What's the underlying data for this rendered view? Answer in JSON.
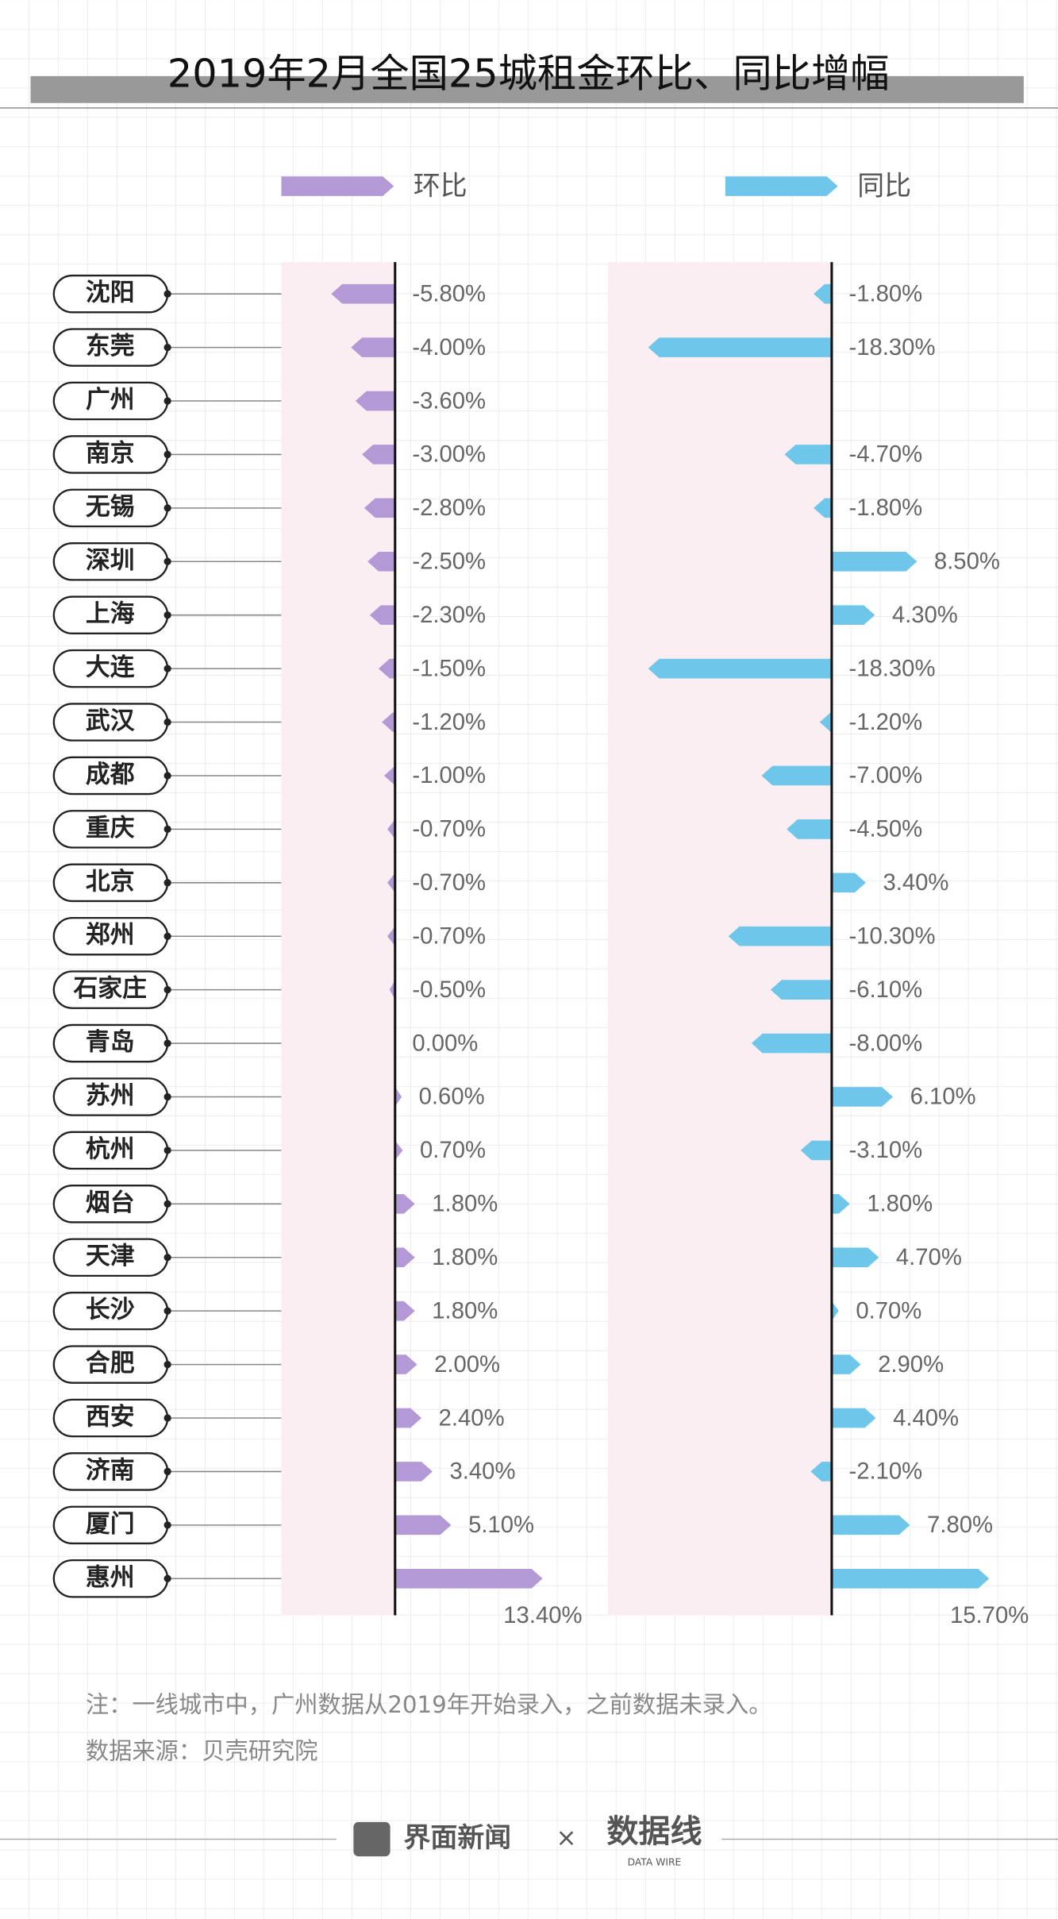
{
  "chart_data": {
    "type": "bar",
    "orientation": "horizontal",
    "title": "2019年2月全国25城租金环比、同比增幅",
    "categories": [
      "沈阳",
      "东莞",
      "广州",
      "南京",
      "无锡",
      "深圳",
      "上海",
      "大连",
      "武汉",
      "成都",
      "重庆",
      "北京",
      "郑州",
      "石家庄",
      "青岛",
      "苏州",
      "杭州",
      "烟台",
      "天津",
      "长沙",
      "合肥",
      "西安",
      "济南",
      "厦门",
      "惠州"
    ],
    "series": [
      {
        "name": "环比",
        "color": "#b39ad6",
        "values": [
          -5.8,
          -4.0,
          -3.6,
          -3.0,
          -2.8,
          -2.5,
          -2.3,
          -1.5,
          -1.2,
          -1.0,
          -0.7,
          -0.7,
          -0.7,
          -0.5,
          0.0,
          0.6,
          0.7,
          1.8,
          1.8,
          1.8,
          2.0,
          2.4,
          3.4,
          5.1,
          13.4
        ],
        "value_labels": [
          "-5.80%",
          "-4.00%",
          "-3.60%",
          "-3.00%",
          "-2.80%",
          "-2.50%",
          "-2.30%",
          "-1.50%",
          "-1.20%",
          "-1.00%",
          "-0.70%",
          "-0.70%",
          "-0.70%",
          "-0.50%",
          "0.00%",
          "0.60%",
          "0.70%",
          "1.80%",
          "1.80%",
          "1.80%",
          "2.00%",
          "2.40%",
          "3.40%",
          "5.10%",
          "13.40%"
        ]
      },
      {
        "name": "同比",
        "color": "#6ec6ea",
        "values": [
          -1.8,
          -18.3,
          null,
          -4.7,
          -1.8,
          8.5,
          4.3,
          -18.3,
          -1.2,
          -7.0,
          -4.5,
          3.4,
          -10.3,
          -6.1,
          -8.0,
          6.1,
          -3.1,
          1.8,
          4.7,
          0.7,
          2.9,
          4.4,
          -2.1,
          7.8,
          15.7
        ],
        "value_labels": [
          "-1.80%",
          "-18.30%",
          null,
          "-4.70%",
          "-1.80%",
          "8.50%",
          "4.30%",
          "-18.30%",
          "-1.20%",
          "-7.00%",
          "-4.50%",
          "3.40%",
          "-10.30%",
          "-6.10%",
          "-8.00%",
          "6.10%",
          "-3.10%",
          "1.80%",
          "4.70%",
          "0.70%",
          "2.90%",
          "4.40%",
          "-2.10%",
          "7.80%",
          "15.70%"
        ]
      }
    ],
    "notes": [
      "注：一线城市中，广州数据从2019年开始录入，之前数据未录入。",
      "数据来源：贝壳研究院"
    ]
  },
  "footer": {
    "brand": "界面新闻",
    "separator": "×",
    "partner": "数据线",
    "partner_sub": "DATA WIRE"
  }
}
